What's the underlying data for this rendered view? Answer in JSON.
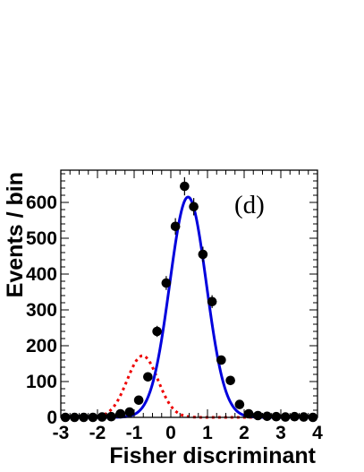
{
  "chart_data": {
    "type": "scatter",
    "panel_label": "(d)",
    "xlabel": "Fisher discriminant",
    "ylabel": "Events / bin",
    "xlim": [
      -3,
      4
    ],
    "ylim": [
      0,
      690
    ],
    "x_ticks": [
      "-3",
      "-2",
      "-1",
      "0",
      "1",
      "2",
      "3",
      "4"
    ],
    "y_ticks": [
      "0",
      "100",
      "200",
      "300",
      "400",
      "500",
      "600"
    ],
    "grid": false,
    "legend": "none",
    "colors": {
      "data": "#000000",
      "total_fit": "#0000dd",
      "background": "#ee0000"
    },
    "series": [
      {
        "style": "points-with-error-bars",
        "x": [
          -2.875,
          -2.625,
          -2.375,
          -2.125,
          -1.875,
          -1.625,
          -1.375,
          -1.125,
          -0.875,
          -0.625,
          -0.375,
          -0.125,
          0.125,
          0.375,
          0.625,
          0.875,
          1.125,
          1.375,
          1.625,
          1.875,
          2.125,
          2.375,
          2.625,
          2.875,
          3.125,
          3.375,
          3.625,
          3.875
        ],
        "y": [
          0,
          0,
          0,
          0,
          1,
          2,
          10,
          15,
          48,
          113,
          240,
          375,
          533,
          645,
          588,
          455,
          323,
          160,
          103,
          36,
          10,
          5,
          3,
          2,
          1,
          2,
          1,
          0
        ],
        "yerr": [
          0,
          0,
          0,
          0,
          1,
          1.5,
          3.2,
          3.9,
          6.9,
          10.6,
          15.5,
          19.4,
          23.1,
          25.4,
          24.2,
          21.3,
          18,
          12.6,
          10.1,
          6,
          3.2,
          2.2,
          1.7,
          1.4,
          1,
          1.4,
          1,
          0
        ]
      },
      {
        "style": "solid-line",
        "function": "gaussian",
        "amplitude": 615,
        "mean": 0.47,
        "sigma": 0.5
      },
      {
        "style": "dashed-line",
        "function": "gaussian",
        "amplitude": 172,
        "mean": -0.77,
        "sigma": 0.42
      }
    ]
  }
}
